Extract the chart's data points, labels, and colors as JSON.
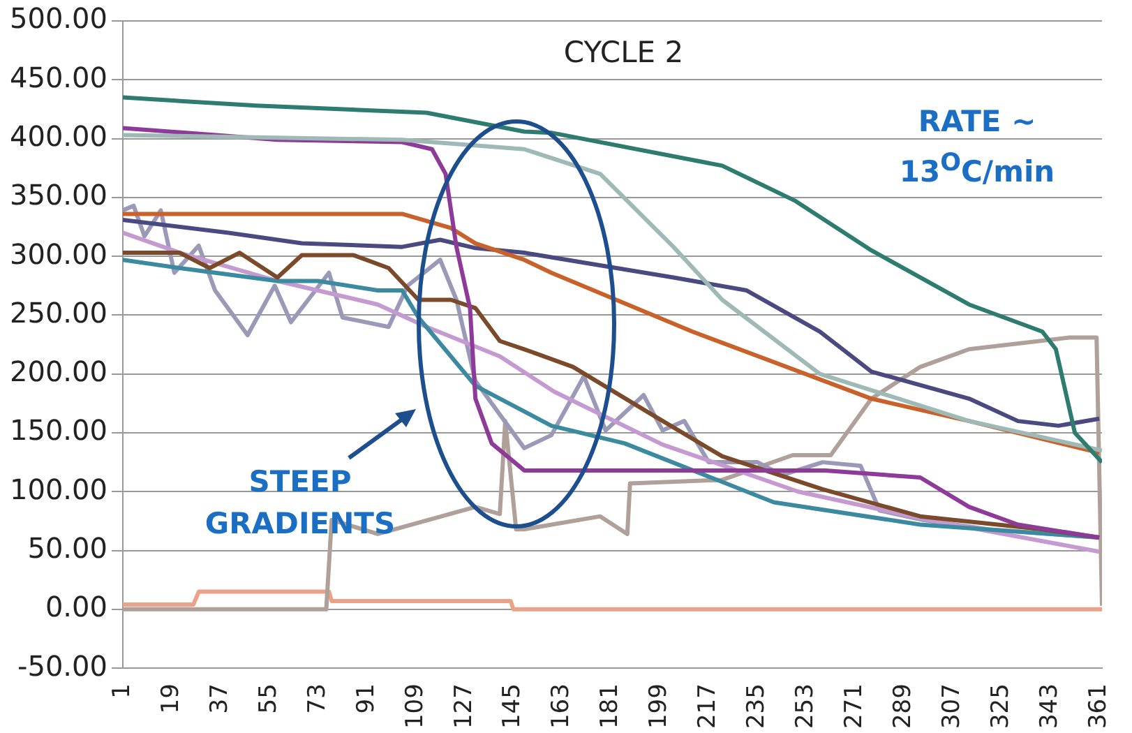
{
  "chart_data": {
    "type": "line",
    "title": "CYCLE 2",
    "annotations": [
      "RATE ~ 13$^{O}$C/min",
      "STEEP GRADIENTS"
    ],
    "xlim": [
      1,
      362
    ],
    "xticks": [
      1,
      19,
      37,
      55,
      73,
      91,
      109,
      127,
      145,
      163,
      181,
      199,
      217,
      235,
      253,
      271,
      289,
      307,
      325,
      343,
      361
    ],
    "ylim": [
      -50,
      500
    ],
    "yticks": [
      {
        "value": -50,
        "label": "-50.00"
      },
      {
        "value": 0,
        "label": "0.00"
      },
      {
        "value": 50,
        "label": "50.00"
      },
      {
        "value": 100,
        "label": "100.00"
      },
      {
        "value": 150,
        "label": "150.00"
      },
      {
        "value": 200,
        "label": "200.00"
      },
      {
        "value": 250,
        "label": "250.00"
      },
      {
        "value": 300,
        "label": "300.00"
      },
      {
        "value": 350,
        "label": "350.00"
      },
      {
        "value": 400,
        "label": "400.00"
      },
      {
        "value": 450,
        "label": "450.00"
      },
      {
        "value": 500,
        "label": "500.00"
      }
    ],
    "grid": "y",
    "legend": false,
    "marker": "none",
    "line_style": "solid",
    "series": [
      {
        "color": "#2e7b70",
        "x": [
          1,
          50,
          113,
          149,
          159,
          222,
          249,
          277,
          313,
          340,
          345,
          352,
          362
        ],
        "values": [
          435,
          428,
          422,
          406,
          405,
          377,
          347,
          305,
          259,
          236,
          221,
          150,
          125
        ]
      },
      {
        "color": "#9fbab6",
        "x": [
          1,
          104,
          149,
          177,
          204,
          222,
          258,
          313,
          362
        ],
        "values": [
          403,
          399,
          391,
          370,
          308,
          263,
          200,
          160,
          135
        ]
      },
      {
        "color": "#8e3a98",
        "x": [
          1,
          58,
          104,
          115,
          120,
          124,
          129,
          131,
          137,
          149,
          200,
          260,
          295,
          313,
          331,
          361
        ],
        "values": [
          409,
          399,
          397,
          391,
          370,
          308,
          256,
          179,
          141,
          118,
          118,
          118,
          112,
          87,
          72,
          61
        ]
      },
      {
        "color": "#c8622a",
        "x": [
          1,
          58,
          104,
          122,
          131,
          149,
          159,
          211,
          277,
          313,
          361
        ],
        "values": [
          336,
          336,
          336,
          324,
          311,
          297,
          286,
          236,
          179,
          160,
          133
        ]
      },
      {
        "color": "#4a4a80",
        "x": [
          1,
          40,
          67,
          104,
          118,
          131,
          149,
          204,
          231,
          258,
          277,
          313,
          331,
          346,
          361
        ],
        "values": [
          331,
          320,
          311,
          308,
          314,
          307,
          303,
          282,
          271,
          236,
          202,
          179,
          160,
          156,
          162
        ]
      },
      {
        "color": "#7b4a2a",
        "x": [
          1,
          22,
          33,
          44,
          58,
          67,
          86,
          99,
          110,
          122,
          131,
          140,
          149,
          167,
          195,
          222,
          259,
          295,
          340,
          361
        ],
        "values": [
          303,
          303,
          290,
          303,
          282,
          301,
          301,
          290,
          263,
          263,
          256,
          228,
          221,
          206,
          167,
          130,
          102,
          79,
          68,
          61
        ]
      },
      {
        "color": "#3b8aa0",
        "x": [
          1,
          22,
          58,
          73,
          95,
          104,
          110,
          131,
          159,
          186,
          241,
          295,
          361
        ],
        "values": [
          297,
          290,
          279,
          279,
          271,
          271,
          248,
          190,
          156,
          141,
          91,
          72,
          61
        ]
      },
      {
        "color": "#c49ad0",
        "x": [
          1,
          22,
          58,
          95,
          113,
          140,
          160,
          200,
          250,
          300,
          361
        ],
        "values": [
          320,
          303,
          279,
          259,
          240,
          215,
          185,
          140,
          100,
          75,
          49
        ]
      },
      {
        "color": "#9a9ab8",
        "x": [
          1,
          5,
          9,
          15,
          20,
          29,
          35,
          47,
          57,
          63,
          77,
          82,
          99,
          106,
          118,
          124,
          131,
          149,
          159,
          171,
          179,
          193,
          200,
          208,
          217,
          235,
          244,
          259,
          273,
          280,
          296,
          320,
          361
        ],
        "values": [
          339,
          343,
          317,
          339,
          286,
          309,
          271,
          233,
          275,
          244,
          286,
          248,
          240,
          275,
          297,
          263,
          194,
          137,
          148,
          198,
          152,
          182,
          152,
          160,
          125,
          125,
          114,
          125,
          122,
          84,
          76,
          68,
          61
        ]
      },
      {
        "color": "#b0a09a",
        "x": [
          1,
          76,
          78,
          95,
          131,
          140,
          142,
          146,
          149,
          177,
          187,
          188,
          222,
          248,
          262,
          277,
          295,
          313,
          350,
          360,
          362
        ],
        "values": [
          0,
          0,
          76,
          64,
          87,
          81,
          160,
          68,
          68,
          79,
          64,
          107,
          110,
          131,
          131,
          179,
          206,
          221,
          231,
          231,
          3
        ]
      },
      {
        "color": "#e8a38a",
        "x": [
          1,
          27,
          29,
          77,
          78,
          144,
          145,
          362
        ],
        "values": [
          4,
          4,
          15,
          15,
          7,
          7,
          0,
          0
        ]
      }
    ]
  }
}
